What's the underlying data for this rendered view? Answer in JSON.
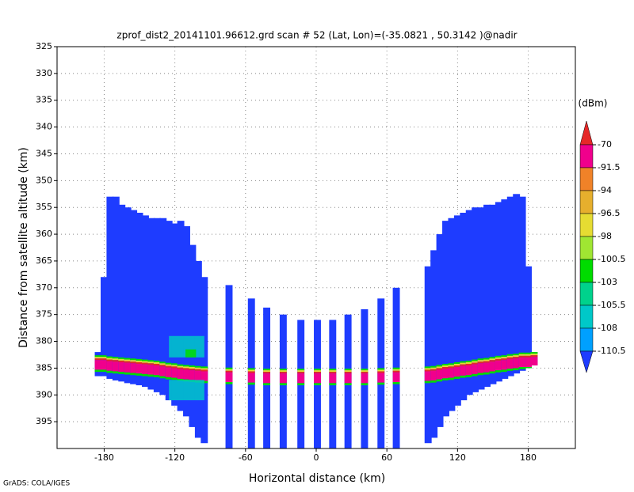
{
  "chart_data": {
    "type": "profile",
    "title": "zprof_dist2_20141101.96612.grd  scan # 52  (Lat, Lon)=(-35.0821 , 50.3142 )@nadir",
    "x_label": "Horizontal distance (km)",
    "y_label": "Distance from satellite altitude (km)",
    "footer": "GrADS: COLA/IGES",
    "xlim": [
      -220,
      220
    ],
    "xticks": [
      -180,
      -120,
      -60,
      0,
      60,
      120,
      180
    ],
    "ylim": [
      325,
      400
    ],
    "y_inverted": true,
    "yticks": [
      325,
      330,
      335,
      340,
      345,
      350,
      355,
      360,
      365,
      370,
      375,
      380,
      385,
      390,
      395
    ],
    "grid": true,
    "colorbar": {
      "unit": "(dBm)",
      "levels": [
        -70,
        -91.5,
        -94,
        -96.5,
        -98,
        -100.5,
        -103,
        -105.5,
        -108,
        -110.5
      ],
      "colors": [
        "#e62828",
        "#f0008c",
        "#f08228",
        "#e6af2d",
        "#e6dc32",
        "#a0e632",
        "#00dc00",
        "#00d28c",
        "#00c8c8",
        "#00a0ff",
        "#1e3cff"
      ]
    },
    "background_color": "#1e3cff",
    "column_width": 6,
    "columns": [
      {
        "x": -185,
        "top": 382,
        "bottom": 386.5,
        "surface": 383.5
      },
      {
        "x": -180,
        "top": 368,
        "bottom": 386.5,
        "surface": 383.5
      },
      {
        "x": -175,
        "top": 353,
        "bottom": 387,
        "surface": 383.7
      },
      {
        "x": -170,
        "top": 353,
        "bottom": 387.3,
        "surface": 383.8
      },
      {
        "x": -165,
        "top": 354.5,
        "bottom": 387.5,
        "surface": 383.9
      },
      {
        "x": -160,
        "top": 355,
        "bottom": 387.8,
        "surface": 384
      },
      {
        "x": -155,
        "top": 355.5,
        "bottom": 388,
        "surface": 384.1
      },
      {
        "x": -150,
        "top": 356,
        "bottom": 388.2,
        "surface": 384.2
      },
      {
        "x": -145,
        "top": 356.5,
        "bottom": 388.5,
        "surface": 384.3
      },
      {
        "x": -140,
        "top": 357,
        "bottom": 389,
        "surface": 384.4
      },
      {
        "x": -135,
        "top": 357,
        "bottom": 389.5,
        "surface": 384.5
      },
      {
        "x": -130,
        "top": 357,
        "bottom": 390,
        "surface": 384.7
      },
      {
        "x": -125,
        "top": 357.5,
        "bottom": 391,
        "surface": 384.9
      },
      {
        "x": -120,
        "top": 358,
        "bottom": 392,
        "surface": 385
      },
      {
        "x": -115,
        "top": 357.5,
        "bottom": 393,
        "surface": 385.2
      },
      {
        "x": -110,
        "top": 358.5,
        "bottom": 394,
        "surface": 385.3
      },
      {
        "x": -105,
        "top": 362,
        "bottom": 396,
        "surface": 385.4
      },
      {
        "x": -100,
        "top": 365,
        "bottom": 398,
        "surface": 385.5
      },
      {
        "x": -95,
        "top": 368,
        "bottom": 399,
        "surface": 385.6
      },
      {
        "x": -74,
        "top": 369.5,
        "bottom": 400,
        "surface": 385.8
      },
      {
        "x": -55,
        "top": 372,
        "bottom": 400,
        "surface": 385.9
      },
      {
        "x": -42,
        "top": 373.7,
        "bottom": 400,
        "surface": 386
      },
      {
        "x": -28,
        "top": 375,
        "bottom": 400,
        "surface": 386
      },
      {
        "x": -13,
        "top": 376,
        "bottom": 400,
        "surface": 386
      },
      {
        "x": 1,
        "top": 376,
        "bottom": 400,
        "surface": 386
      },
      {
        "x": 14,
        "top": 376,
        "bottom": 400,
        "surface": 386
      },
      {
        "x": 27,
        "top": 375,
        "bottom": 400,
        "surface": 386
      },
      {
        "x": 41,
        "top": 374,
        "bottom": 400,
        "surface": 386
      },
      {
        "x": 55,
        "top": 372,
        "bottom": 400,
        "surface": 385.9
      },
      {
        "x": 68,
        "top": 370,
        "bottom": 400,
        "surface": 385.8
      },
      {
        "x": 95,
        "top": 366,
        "bottom": 399,
        "surface": 385.6
      },
      {
        "x": 100,
        "top": 363,
        "bottom": 398,
        "surface": 385.5
      },
      {
        "x": 105,
        "top": 360,
        "bottom": 396,
        "surface": 385.3
      },
      {
        "x": 110,
        "top": 357.5,
        "bottom": 394,
        "surface": 385.1
      },
      {
        "x": 115,
        "top": 357,
        "bottom": 393,
        "surface": 385
      },
      {
        "x": 120,
        "top": 356.5,
        "bottom": 392,
        "surface": 384.8
      },
      {
        "x": 125,
        "top": 356,
        "bottom": 391,
        "surface": 384.6
      },
      {
        "x": 130,
        "top": 355.5,
        "bottom": 390,
        "surface": 384.5
      },
      {
        "x": 135,
        "top": 355,
        "bottom": 389.5,
        "surface": 384.3
      },
      {
        "x": 140,
        "top": 355,
        "bottom": 389,
        "surface": 384.1
      },
      {
        "x": 145,
        "top": 354.5,
        "bottom": 388.5,
        "surface": 384
      },
      {
        "x": 150,
        "top": 354.5,
        "bottom": 388,
        "surface": 383.8
      },
      {
        "x": 155,
        "top": 354,
        "bottom": 387.5,
        "surface": 383.6
      },
      {
        "x": 160,
        "top": 353.5,
        "bottom": 387,
        "surface": 383.5
      },
      {
        "x": 165,
        "top": 353,
        "bottom": 386.5,
        "surface": 383.3
      },
      {
        "x": 170,
        "top": 352.5,
        "bottom": 386,
        "surface": 383.2
      },
      {
        "x": 175,
        "top": 353,
        "bottom": 385.5,
        "surface": 383
      },
      {
        "x": 180,
        "top": 366,
        "bottom": 385,
        "surface": 383
      },
      {
        "x": 185,
        "top": 382,
        "bottom": 384.5,
        "surface": 382.9
      }
    ],
    "patches": [
      {
        "x0": -125,
        "x1": -95,
        "y0": 379,
        "y1": 383,
        "color": "#00c8c8"
      },
      {
        "x0": -111,
        "x1": -102,
        "y0": 381.5,
        "y1": 383,
        "color": "#00dc00"
      },
      {
        "x0": -125,
        "x1": -95,
        "y0": 387.2,
        "y1": 391,
        "color": "#00c8c8"
      }
    ]
  }
}
